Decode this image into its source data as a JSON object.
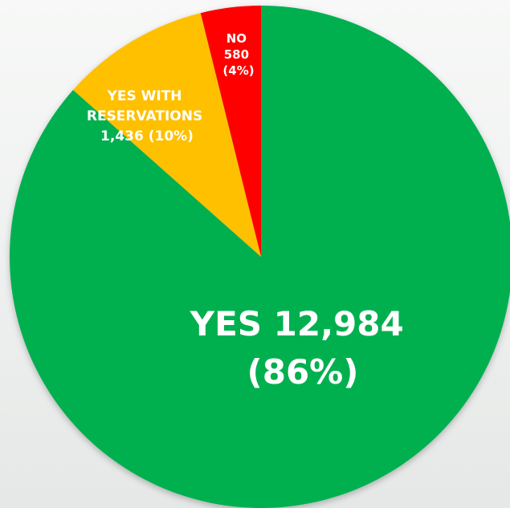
{
  "chart_data": {
    "type": "pie",
    "start_angle_deg": 0,
    "direction": "counterclockwise",
    "slices": [
      {
        "key": "no",
        "label_lines": [
          "NO",
          "580",
          "(4%)"
        ],
        "value": 580,
        "percent": 4,
        "color": "#ff0000"
      },
      {
        "key": "yes-with-reservations",
        "label_lines": [
          "YES WITH",
          "RESERVATIONS",
          "1,436 (10%)"
        ],
        "value": 1436,
        "percent": 10,
        "color": "#ffc000"
      },
      {
        "key": "yes",
        "label_lines": [
          "YES 12,984",
          "(86%)"
        ],
        "value": 12984,
        "percent": 86,
        "color": "#00b050"
      }
    ]
  }
}
